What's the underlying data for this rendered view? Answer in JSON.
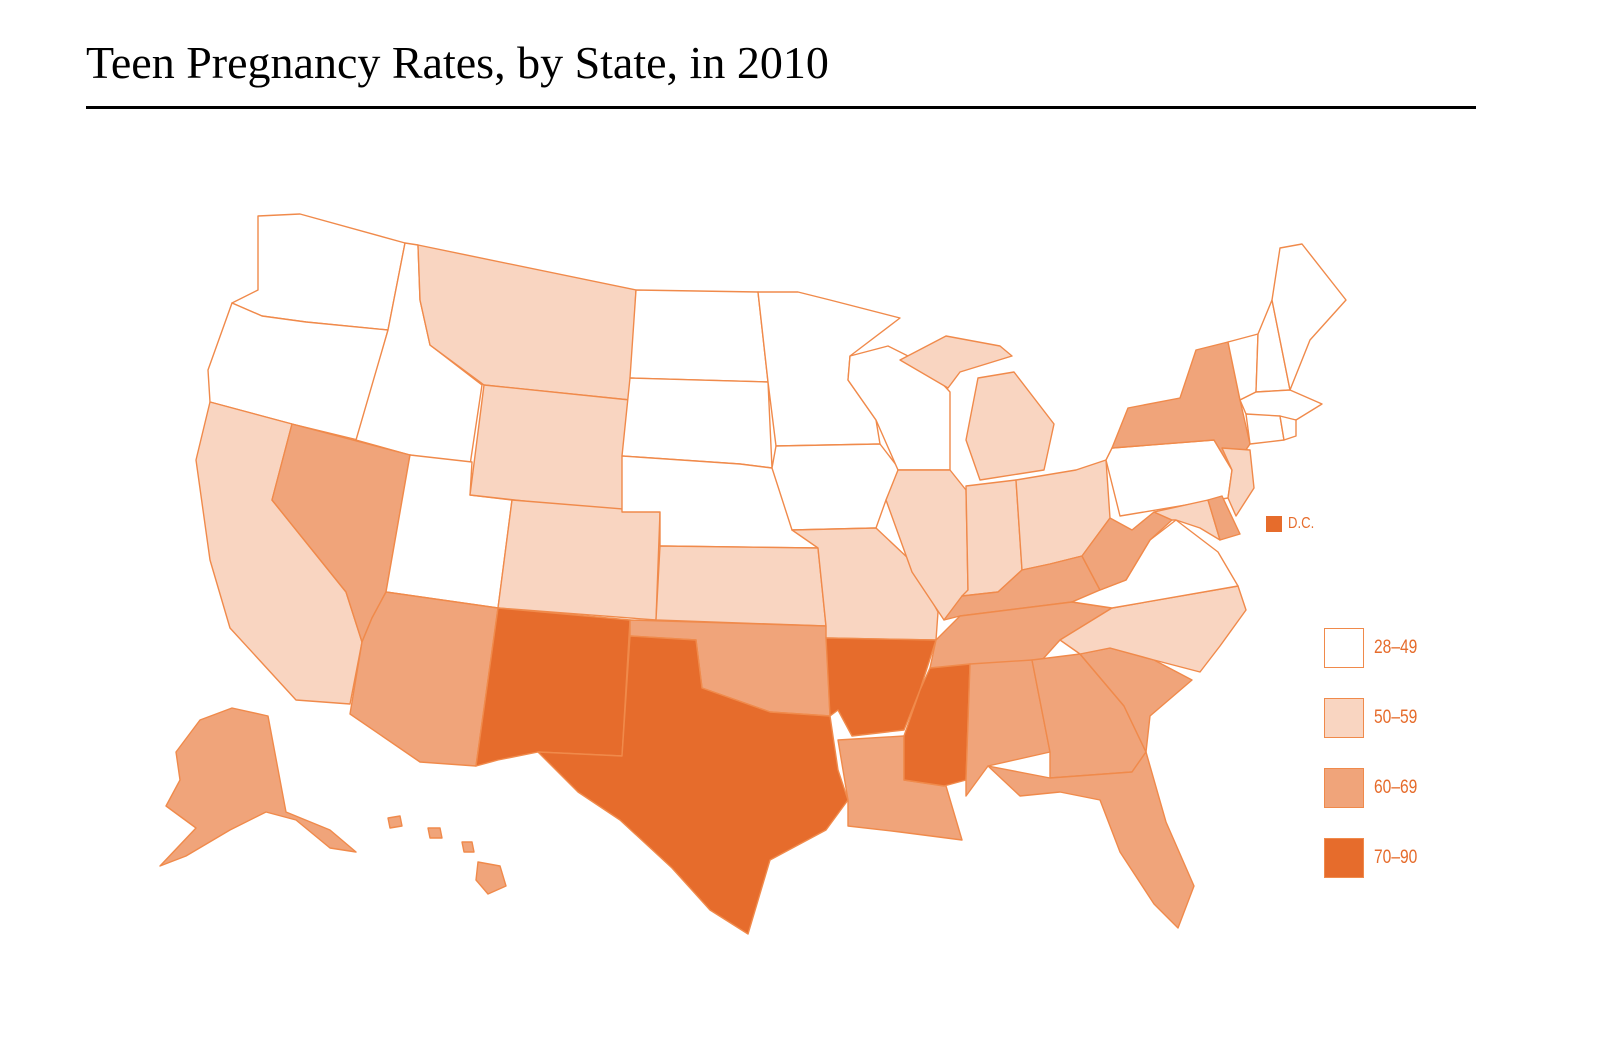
{
  "title": "Teen Pregnancy Rates, by State, in 2010",
  "colors": {
    "c1": "#ffffff",
    "c2": "#f9d5c1",
    "c3": "#f0a47a",
    "c4": "#e66c2c",
    "stroke": "#f08a4b"
  },
  "legend": [
    {
      "label": "28–49",
      "color": "#ffffff"
    },
    {
      "label": "50–59",
      "color": "#f9d5c1"
    },
    {
      "label": "60–69",
      "color": "#f0a47a"
    },
    {
      "label": "70–90",
      "color": "#e66c2c"
    }
  ],
  "dc": {
    "label": "D.C.",
    "color": "#e66c2c",
    "bin": "70–90"
  },
  "chart_data": {
    "type": "choropleth",
    "title": "Teen Pregnancy Rates, by State, in 2010",
    "bins": [
      "28–49",
      "50–59",
      "60–69",
      "70–90"
    ],
    "states": {
      "WA": "28–49",
      "OR": "28–49",
      "ID": "28–49",
      "UT": "28–49",
      "ND": "28–49",
      "SD": "28–49",
      "NE": "28–49",
      "MN": "28–49",
      "IA": "28–49",
      "WI": "28–49",
      "PA": "28–49",
      "VA": "28–49",
      "ME": "28–49",
      "NH": "28–49",
      "VT": "28–49",
      "MA": "28–49",
      "RI": "28–49",
      "CT": "28–49",
      "CA": "50–59",
      "MT": "50–59",
      "WY": "50–59",
      "CO": "50–59",
      "KS": "50–59",
      "MO": "50–59",
      "IL": "50–59",
      "IN": "50–59",
      "OH": "50–59",
      "MI": "50–59",
      "NJ": "50–59",
      "MD": "50–59",
      "NC": "50–59",
      "NV": "60–69",
      "AZ": "60–69",
      "OK": "60–69",
      "LA": "60–69",
      "AL": "60–69",
      "GA": "60–69",
      "SC": "60–69",
      "FL": "60–69",
      "TN": "60–69",
      "KY": "60–69",
      "WV": "60–69",
      "NY": "60–69",
      "DE": "60–69",
      "AK": "60–69",
      "HI": "60–69",
      "NM": "70–90",
      "TX": "70–90",
      "AR": "70–90",
      "MS": "70–90",
      "DC": "70–90"
    }
  }
}
